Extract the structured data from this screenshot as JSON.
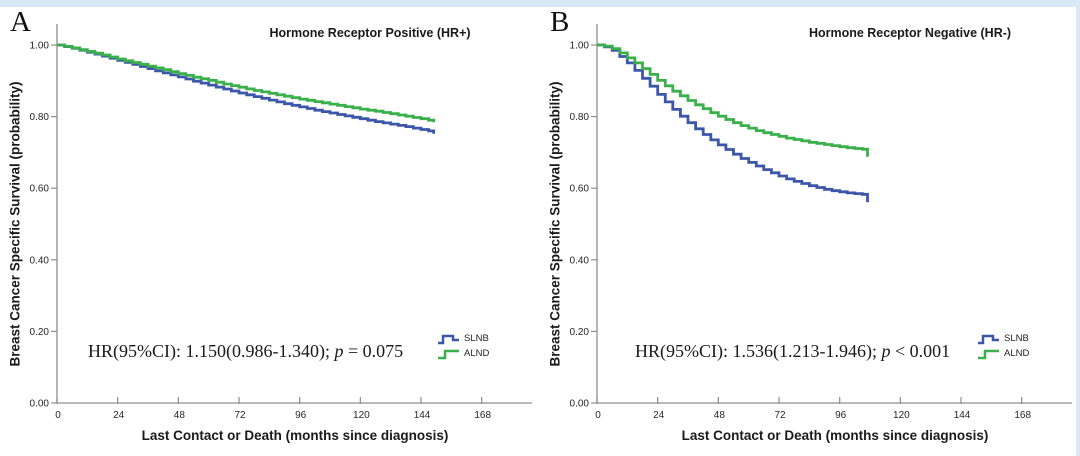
{
  "page": {
    "background": "#ffffff",
    "top_strip_color": "#d8e8f6",
    "right_strip_color": "#dce9f5"
  },
  "figure": {
    "y_axis_label": "Breast Cancer Specific Survival (probability)",
    "x_axis_label": "Last Contact or Death (months since diagnosis)",
    "legend": [
      {
        "name": "SLNB",
        "color": "#3C57A9"
      },
      {
        "name": "ALND",
        "color": "#3AB04A"
      }
    ],
    "panels": [
      {
        "letter": "A",
        "title": "Hormone Receptor Positive (HR+)",
        "annotation": {
          "prefix": "HR(95%CI): 1.150(0.986-1.340); ",
          "italic": "p",
          "suffix": " = 0.075"
        }
      },
      {
        "letter": "B",
        "title": "Hormone Receptor Negative (HR-)",
        "annotation": {
          "prefix": "HR(95%CI): 1.536(1.213-1.946); ",
          "italic": "p",
          "suffix": " < 0.001"
        }
      }
    ]
  },
  "chart_data": [
    {
      "type": "line",
      "subtype": "kaplan-meier-step",
      "title": "Hormone Receptor Positive (HR+)",
      "xlabel": "Last Contact or Death (months since diagnosis)",
      "ylabel": "Breast Cancer Specific Survival (probability)",
      "xlim": [
        0,
        188
      ],
      "ylim": [
        0,
        1.0
      ],
      "xticks": [
        0,
        24,
        48,
        72,
        96,
        120,
        144,
        168
      ],
      "yticks": [
        0.0,
        0.2,
        0.4,
        0.6,
        0.8,
        1.0
      ],
      "legend_position": "lower-right",
      "grid": false,
      "hr_annotation": "HR(95%CI): 1.150(0.986-1.340); p = 0.075",
      "series": [
        {
          "name": "SLNB",
          "color": "#3C57A9",
          "points": [
            [
              0,
              1.0
            ],
            [
              6,
              0.991
            ],
            [
              12,
              0.98
            ],
            [
              18,
              0.969
            ],
            [
              24,
              0.957
            ],
            [
              30,
              0.946
            ],
            [
              36,
              0.934
            ],
            [
              42,
              0.922
            ],
            [
              48,
              0.911
            ],
            [
              54,
              0.899
            ],
            [
              60,
              0.888
            ],
            [
              66,
              0.877
            ],
            [
              72,
              0.866
            ],
            [
              78,
              0.856
            ],
            [
              84,
              0.846
            ],
            [
              90,
              0.836
            ],
            [
              96,
              0.827
            ],
            [
              102,
              0.818
            ],
            [
              108,
              0.81
            ],
            [
              114,
              0.802
            ],
            [
              120,
              0.794
            ],
            [
              126,
              0.786
            ],
            [
              132,
              0.779
            ],
            [
              138,
              0.772
            ],
            [
              144,
              0.764
            ],
            [
              147,
              0.76
            ],
            [
              149,
              0.752
            ]
          ]
        },
        {
          "name": "ALND",
          "color": "#3AB04A",
          "points": [
            [
              0,
              1.0
            ],
            [
              6,
              0.992
            ],
            [
              12,
              0.982
            ],
            [
              18,
              0.972
            ],
            [
              24,
              0.961
            ],
            [
              30,
              0.951
            ],
            [
              36,
              0.941
            ],
            [
              42,
              0.931
            ],
            [
              48,
              0.92
            ],
            [
              54,
              0.91
            ],
            [
              60,
              0.901
            ],
            [
              66,
              0.891
            ],
            [
              72,
              0.882
            ],
            [
              78,
              0.873
            ],
            [
              84,
              0.865
            ],
            [
              90,
              0.857
            ],
            [
              96,
              0.849
            ],
            [
              102,
              0.842
            ],
            [
              108,
              0.835
            ],
            [
              114,
              0.828
            ],
            [
              120,
              0.821
            ],
            [
              126,
              0.815
            ],
            [
              132,
              0.808
            ],
            [
              138,
              0.801
            ],
            [
              144,
              0.794
            ],
            [
              147,
              0.79
            ],
            [
              149,
              0.784
            ]
          ]
        }
      ]
    },
    {
      "type": "line",
      "subtype": "kaplan-meier-step",
      "title": "Hormone Receptor Negative (HR-)",
      "xlabel": "Last Contact or Death (months since diagnosis)",
      "ylabel": "Breast Cancer Specific Survival (probability)",
      "xlim": [
        0,
        188
      ],
      "ylim": [
        0,
        1.0
      ],
      "xticks": [
        0,
        24,
        48,
        72,
        96,
        120,
        144,
        168
      ],
      "yticks": [
        0.0,
        0.2,
        0.4,
        0.6,
        0.8,
        1.0
      ],
      "legend_position": "lower-right",
      "grid": false,
      "hr_annotation": "HR(95%CI): 1.536(1.213-1.946); p < 0.001",
      "series": [
        {
          "name": "SLNB",
          "color": "#3C57A9",
          "points": [
            [
              0,
              1.0
            ],
            [
              3,
              0.995
            ],
            [
              6,
              0.985
            ],
            [
              9,
              0.968
            ],
            [
              12,
              0.95
            ],
            [
              15,
              0.929
            ],
            [
              18,
              0.907
            ],
            [
              21,
              0.885
            ],
            [
              24,
              0.862
            ],
            [
              27,
              0.841
            ],
            [
              30,
              0.82
            ],
            [
              33,
              0.801
            ],
            [
              36,
              0.783
            ],
            [
              39,
              0.766
            ],
            [
              42,
              0.75
            ],
            [
              45,
              0.735
            ],
            [
              48,
              0.721
            ],
            [
              51,
              0.708
            ],
            [
              54,
              0.695
            ],
            [
              57,
              0.683
            ],
            [
              60,
              0.672
            ],
            [
              63,
              0.662
            ],
            [
              66,
              0.652
            ],
            [
              69,
              0.643
            ],
            [
              72,
              0.634
            ],
            [
              75,
              0.626
            ],
            [
              78,
              0.619
            ],
            [
              81,
              0.613
            ],
            [
              84,
              0.607
            ],
            [
              87,
              0.602
            ],
            [
              90,
              0.597
            ],
            [
              93,
              0.593
            ],
            [
              96,
              0.59
            ],
            [
              99,
              0.587
            ],
            [
              102,
              0.585
            ],
            [
              105,
              0.583
            ],
            [
              107,
              0.561
            ]
          ]
        },
        {
          "name": "ALND",
          "color": "#3AB04A",
          "points": [
            [
              0,
              1.0
            ],
            [
              3,
              0.997
            ],
            [
              6,
              0.99
            ],
            [
              9,
              0.978
            ],
            [
              12,
              0.964
            ],
            [
              15,
              0.95
            ],
            [
              18,
              0.934
            ],
            [
              21,
              0.918
            ],
            [
              24,
              0.901
            ],
            [
              27,
              0.886
            ],
            [
              30,
              0.871
            ],
            [
              33,
              0.858
            ],
            [
              36,
              0.845
            ],
            [
              39,
              0.833
            ],
            [
              42,
              0.822
            ],
            [
              45,
              0.811
            ],
            [
              48,
              0.801
            ],
            [
              51,
              0.792
            ],
            [
              54,
              0.783
            ],
            [
              57,
              0.775
            ],
            [
              60,
              0.768
            ],
            [
              63,
              0.761
            ],
            [
              66,
              0.755
            ],
            [
              69,
              0.75
            ],
            [
              72,
              0.745
            ],
            [
              75,
              0.74
            ],
            [
              78,
              0.736
            ],
            [
              81,
              0.732
            ],
            [
              84,
              0.728
            ],
            [
              87,
              0.725
            ],
            [
              90,
              0.722
            ],
            [
              93,
              0.719
            ],
            [
              96,
              0.716
            ],
            [
              99,
              0.713
            ],
            [
              102,
              0.711
            ],
            [
              105,
              0.709
            ],
            [
              107,
              0.688
            ]
          ]
        }
      ]
    }
  ]
}
